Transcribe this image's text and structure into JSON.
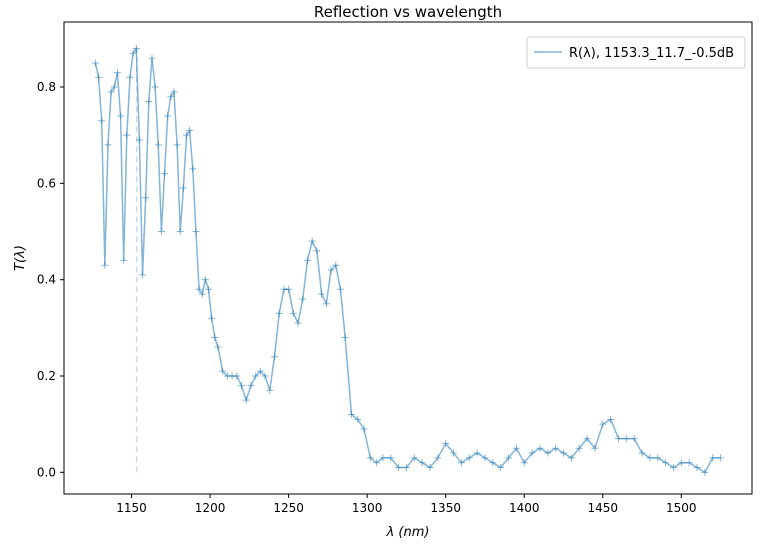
{
  "chart_data": {
    "type": "line",
    "title": "Reflection vs wavelength",
    "xlabel": "λ (nm)",
    "ylabel": "T(λ)",
    "xlim": [
      1107,
      1545
    ],
    "ylim": [
      -0.045,
      0.935
    ],
    "xticks": [
      1150,
      1200,
      1250,
      1300,
      1350,
      1400,
      1450,
      1500
    ],
    "yticks": [
      0.0,
      0.2,
      0.4,
      0.6,
      0.8
    ],
    "grid": false,
    "legend_position": "top-right",
    "marker_vline": {
      "x": 1153.3,
      "y_from": 0.0,
      "y_to": 0.88
    },
    "series": [
      {
        "name": "R(λ), 1153.3_11.7_-0.5dB",
        "color": "#1f77b4",
        "marker": "+",
        "x": [
          1127,
          1129,
          1131,
          1133,
          1135,
          1137,
          1139,
          1141,
          1143,
          1145,
          1147,
          1149,
          1151,
          1153,
          1155,
          1157,
          1159,
          1161,
          1163,
          1165,
          1167,
          1169,
          1171,
          1173,
          1175,
          1177,
          1179,
          1181,
          1183,
          1185,
          1187,
          1189,
          1191,
          1193,
          1195,
          1197,
          1199,
          1201,
          1203,
          1205,
          1208,
          1211,
          1214,
          1217,
          1220,
          1223,
          1226,
          1229,
          1232,
          1235,
          1238,
          1241,
          1244,
          1247,
          1250,
          1253,
          1256,
          1259,
          1262,
          1265,
          1268,
          1271,
          1274,
          1277,
          1280,
          1283,
          1286,
          1290,
          1294,
          1298,
          1302,
          1306,
          1310,
          1315,
          1320,
          1325,
          1330,
          1335,
          1340,
          1345,
          1350,
          1355,
          1360,
          1365,
          1370,
          1375,
          1380,
          1385,
          1390,
          1395,
          1400,
          1405,
          1410,
          1415,
          1420,
          1425,
          1430,
          1435,
          1440,
          1445,
          1450,
          1455,
          1460,
          1465,
          1470,
          1475,
          1480,
          1485,
          1490,
          1495,
          1500,
          1505,
          1510,
          1515,
          1520,
          1525
        ],
        "y": [
          0.85,
          0.82,
          0.73,
          0.43,
          0.68,
          0.79,
          0.8,
          0.83,
          0.74,
          0.44,
          0.7,
          0.82,
          0.87,
          0.88,
          0.69,
          0.41,
          0.57,
          0.77,
          0.86,
          0.8,
          0.68,
          0.5,
          0.62,
          0.74,
          0.78,
          0.79,
          0.68,
          0.5,
          0.59,
          0.7,
          0.71,
          0.63,
          0.5,
          0.38,
          0.37,
          0.4,
          0.38,
          0.32,
          0.28,
          0.26,
          0.21,
          0.2,
          0.2,
          0.2,
          0.18,
          0.15,
          0.18,
          0.2,
          0.21,
          0.2,
          0.17,
          0.24,
          0.33,
          0.38,
          0.38,
          0.33,
          0.31,
          0.36,
          0.44,
          0.48,
          0.46,
          0.37,
          0.35,
          0.42,
          0.43,
          0.38,
          0.28,
          0.12,
          0.11,
          0.09,
          0.03,
          0.02,
          0.03,
          0.03,
          0.01,
          0.01,
          0.03,
          0.02,
          0.01,
          0.03,
          0.06,
          0.04,
          0.02,
          0.03,
          0.04,
          0.03,
          0.02,
          0.01,
          0.03,
          0.05,
          0.02,
          0.04,
          0.05,
          0.04,
          0.05,
          0.04,
          0.03,
          0.05,
          0.07,
          0.05,
          0.1,
          0.11,
          0.07,
          0.07,
          0.07,
          0.04,
          0.03,
          0.03,
          0.02,
          0.01,
          0.02,
          0.02,
          0.01,
          0.0,
          0.03,
          0.03
        ]
      }
    ]
  }
}
